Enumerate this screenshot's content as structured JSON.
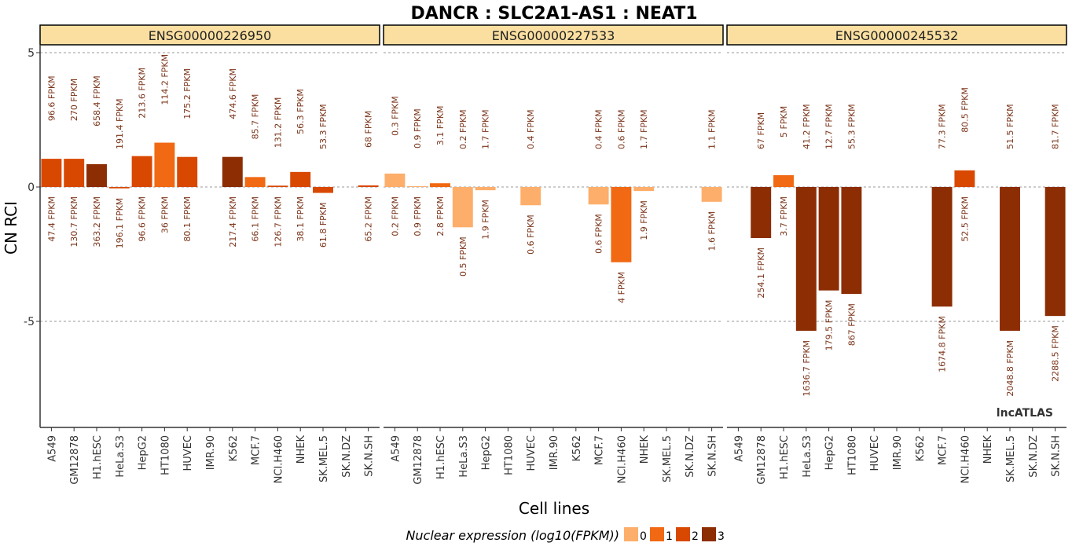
{
  "chart_data": {
    "type": "bar",
    "title": "DANCR : SLC2A1-AS1 : NEAT1",
    "xlabel": "Cell lines",
    "ylabel": "CN RCI",
    "ylim": [
      -9,
      5.2
    ],
    "yticks": [
      5,
      0,
      -5
    ],
    "categories": [
      "A549",
      "GM12878",
      "H1.hESC",
      "HeLa.S3",
      "HepG2",
      "HT1080",
      "HUVEC",
      "IMR.90",
      "K562",
      "MCF.7",
      "NCI.H460",
      "NHEK",
      "SK.MEL.5",
      "SK.N.DZ",
      "SK.N.SH"
    ],
    "legend": {
      "title": "Nuclear expression (log10(FPKM))",
      "placement": "bottom",
      "levels": [
        {
          "label": "0",
          "color": "#fdae6b"
        },
        {
          "label": "1",
          "color": "#f16913"
        },
        {
          "label": "2",
          "color": "#d94801"
        },
        {
          "label": "3",
          "color": "#8c2d04"
        }
      ]
    },
    "watermark": "lncATLAS",
    "panels": [
      {
        "strip": "ENSG00000226950",
        "bars": [
          {
            "value": 1.05,
            "level": 2,
            "top": "96.6 FPKM",
            "bottom": "47.4 FPKM"
          },
          {
            "value": 1.05,
            "level": 2,
            "top": "270 FPKM",
            "bottom": "130.7 FPKM"
          },
          {
            "value": 0.85,
            "level": 3,
            "top": "658.4 FPKM",
            "bottom": "363.2 FPKM"
          },
          {
            "value": -0.05,
            "level": 2,
            "top": "191.4 FPKM",
            "bottom": "196.1 FPKM"
          },
          {
            "value": 1.15,
            "level": 2,
            "top": "213.6 FPKM",
            "bottom": "96.6 FPKM"
          },
          {
            "value": 1.65,
            "level": 1,
            "top": "114.2 FPKM",
            "bottom": "36 FPKM"
          },
          {
            "value": 1.12,
            "level": 2,
            "top": "175.2 FPKM",
            "bottom": "80.1 FPKM"
          },
          null,
          {
            "value": 1.12,
            "level": 3,
            "top": "474.6 FPKM",
            "bottom": "217.4 FPKM"
          },
          {
            "value": 0.37,
            "level": 1,
            "top": "85.7 FPKM",
            "bottom": "66.1 FPKM"
          },
          {
            "value": 0.05,
            "level": 2,
            "top": "131.2 FPKM",
            "bottom": "126.7 FPKM"
          },
          {
            "value": 0.56,
            "level": 2,
            "top": "56.3 FPKM",
            "bottom": "38.1 FPKM"
          },
          {
            "value": -0.22,
            "level": 2,
            "top": "53.3 FPKM",
            "bottom": "61.8 FPKM"
          },
          null,
          {
            "value": 0.06,
            "level": 2,
            "top": "68 FPKM",
            "bottom": "65.2 FPKM"
          }
        ]
      },
      {
        "strip": "ENSG00000227533",
        "bars": [
          {
            "value": 0.5,
            "level": 0,
            "top": "0.3 FPKM",
            "bottom": "0.2 FPKM"
          },
          {
            "value": 0.03,
            "level": 0,
            "top": "0.9 FPKM",
            "bottom": "0.9 FPKM"
          },
          {
            "value": 0.14,
            "level": 1,
            "top": "3.1 FPKM",
            "bottom": "2.8 FPKM"
          },
          {
            "value": -1.5,
            "level": 0,
            "top": "0.2 FPKM",
            "bottom": "0.5 FPKM"
          },
          {
            "value": -0.12,
            "level": 0,
            "top": "1.7 FPKM",
            "bottom": "1.9 FPKM"
          },
          null,
          {
            "value": -0.68,
            "level": 0,
            "top": "0.4 FPKM",
            "bottom": "0.6 FPKM"
          },
          null,
          null,
          {
            "value": -0.65,
            "level": 0,
            "top": "0.4 FPKM",
            "bottom": "0.6 FPKM"
          },
          {
            "value": -2.8,
            "level": 1,
            "top": "0.6 FPKM",
            "bottom": "4 FPKM"
          },
          {
            "value": -0.15,
            "level": 0,
            "top": "1.7 FPKM",
            "bottom": "1.9 FPKM"
          },
          null,
          null,
          {
            "value": -0.55,
            "level": 0,
            "top": "1.1 FPKM",
            "bottom": "1.6 FPKM"
          }
        ]
      },
      {
        "strip": "ENSG00000245532",
        "bars": [
          null,
          {
            "value": -1.9,
            "level": 3,
            "top": "67 FPKM",
            "bottom": "254.1 FPKM"
          },
          {
            "value": 0.44,
            "level": 1,
            "top": "5 FPKM",
            "bottom": "3.7 FPKM"
          },
          {
            "value": -5.35,
            "level": 3,
            "top": "41.2 FPKM",
            "bottom": "1636.7 FPKM"
          },
          {
            "value": -3.85,
            "level": 3,
            "top": "12.7 FPKM",
            "bottom": "179.5 FPKM"
          },
          {
            "value": -3.98,
            "level": 3,
            "top": "55.3 FPKM",
            "bottom": "867 FPKM"
          },
          null,
          null,
          null,
          {
            "value": -4.45,
            "level": 3,
            "top": "77.3 FPKM",
            "bottom": "1674.8 FPKM"
          },
          {
            "value": 0.62,
            "level": 2,
            "top": "80.5 FPKM",
            "bottom": "52.5 FPKM"
          },
          null,
          {
            "value": -5.35,
            "level": 3,
            "top": "51.5 FPKM",
            "bottom": "2048.8 FPKM"
          },
          null,
          {
            "value": -4.8,
            "level": 3,
            "top": "81.7 FPKM",
            "bottom": "2288.5 FPKM"
          }
        ]
      }
    ]
  }
}
